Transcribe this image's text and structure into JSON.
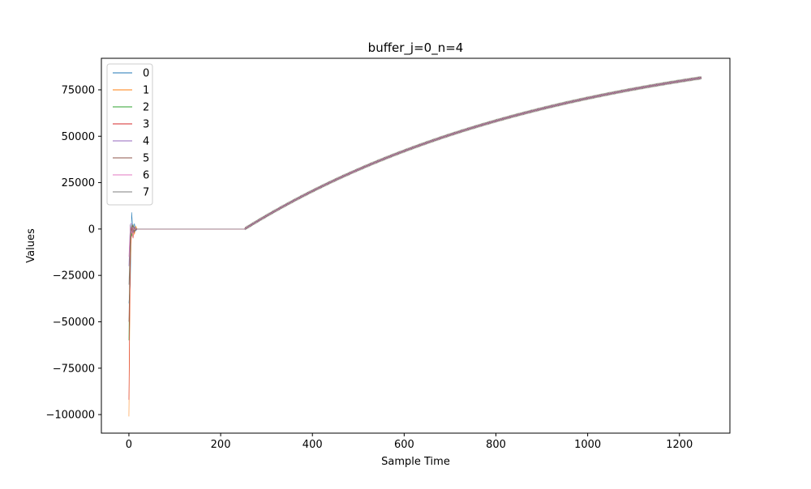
{
  "chart_data": {
    "type": "line",
    "title": "buffer_j=0_n=4",
    "xlabel": "Sample Time",
    "ylabel": "Values",
    "xlim": [
      -60,
      1310
    ],
    "ylim": [
      -110000,
      92000
    ],
    "xticks": [
      0,
      200,
      400,
      600,
      800,
      1000,
      1200
    ],
    "xtick_labels": [
      "0",
      "200",
      "400",
      "600",
      "800",
      "1000",
      "1200"
    ],
    "yticks": [
      -100000,
      -75000,
      -50000,
      -25000,
      0,
      25000,
      50000,
      75000
    ],
    "ytick_labels": [
      "−100000",
      "−75000",
      "−50000",
      "−25000",
      "0",
      "25000",
      "50000",
      "75000"
    ],
    "grid": false,
    "legend_position": "upper-left",
    "x_range": [
      0,
      1248
    ],
    "plateau": {
      "x_start": 20,
      "x_end": 252,
      "value": 0
    },
    "growth": {
      "x_start": 252,
      "x_end": 1248,
      "y_start": 0,
      "y_end": 81500,
      "jitter_amplitude": 700
    },
    "series": [
      {
        "name": "0",
        "color": "#1f77b4",
        "initial": [
          -40000,
          -30000,
          9000,
          -2000,
          3000,
          -1000,
          0
        ]
      },
      {
        "name": "1",
        "color": "#ff7f0e",
        "initial": [
          -101000,
          -20000,
          2000,
          1000,
          -3000,
          1500,
          0
        ]
      },
      {
        "name": "2",
        "color": "#2ca02c",
        "initial": [
          -60000,
          2000,
          -4000,
          2500,
          -1000,
          500,
          0
        ]
      },
      {
        "name": "3",
        "color": "#d62728",
        "initial": [
          -92000,
          -10000,
          1500,
          -5000,
          1000,
          -500,
          0
        ]
      },
      {
        "name": "4",
        "color": "#9467bd",
        "initial": [
          -20000,
          2500,
          3000,
          -1500,
          800,
          -300,
          0
        ]
      },
      {
        "name": "5",
        "color": "#8c564b",
        "initial": [
          -50000,
          -8000,
          1000,
          2000,
          -2000,
          400,
          0
        ]
      },
      {
        "name": "6",
        "color": "#e377c2",
        "initial": [
          -15000,
          1500,
          -2500,
          1000,
          -600,
          200,
          0
        ]
      },
      {
        "name": "7",
        "color": "#7f7f7f",
        "initial": [
          -30000,
          -4000,
          2000,
          -1000,
          500,
          -200,
          0
        ]
      }
    ]
  }
}
